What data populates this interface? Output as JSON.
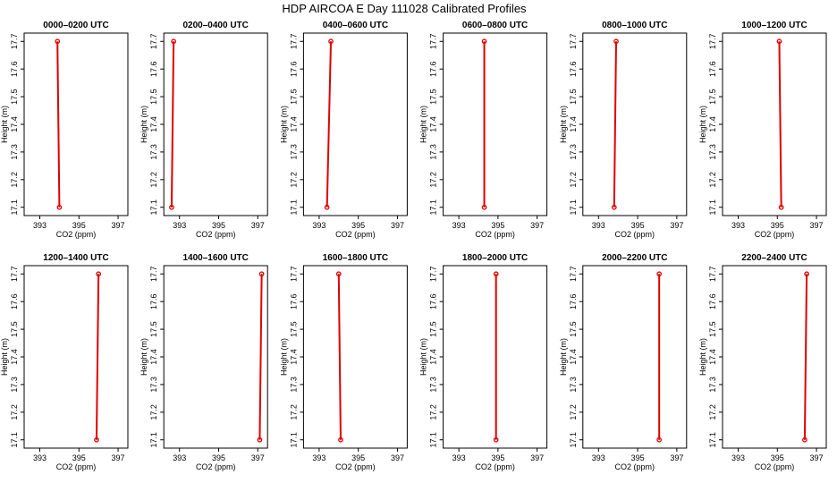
{
  "figure": {
    "title": "HDP AIRCOA E  Day 111028  Calibrated Profiles"
  },
  "chart_data": {
    "type": "line",
    "layout": "2x6 small multiples",
    "xlabel": "CO2 (ppm)",
    "ylabel": "Height (m)",
    "xlim": [
      392.2,
      397.5
    ],
    "ylim": [
      17.07,
      17.73
    ],
    "xticks": [
      393,
      395,
      397
    ],
    "yticks": [
      17.1,
      17.2,
      17.3,
      17.4,
      17.5,
      17.6,
      17.7
    ],
    "grid": false,
    "line_color": "#e00000",
    "panels": [
      {
        "title": "0000–0200 UTC",
        "x": [
          394.0,
          393.9
        ],
        "y": [
          17.1,
          17.7
        ]
      },
      {
        "title": "0200–0400 UTC",
        "x": [
          392.6,
          392.7
        ],
        "y": [
          17.1,
          17.7
        ]
      },
      {
        "title": "0400–0600 UTC",
        "x": [
          393.4,
          393.6
        ],
        "y": [
          17.1,
          17.7
        ]
      },
      {
        "title": "0600–0800 UTC",
        "x": [
          394.3,
          394.3
        ],
        "y": [
          17.1,
          17.7
        ]
      },
      {
        "title": "0800–1000 UTC",
        "x": [
          393.8,
          393.9
        ],
        "y": [
          17.1,
          17.7
        ]
      },
      {
        "title": "1000–1200 UTC",
        "x": [
          395.2,
          395.1
        ],
        "y": [
          17.1,
          17.7
        ]
      },
      {
        "title": "1200–1400 UTC",
        "x": [
          395.9,
          396.0
        ],
        "y": [
          17.1,
          17.7
        ]
      },
      {
        "title": "1400–1600 UTC",
        "x": [
          397.1,
          397.2
        ],
        "y": [
          17.1,
          17.7
        ]
      },
      {
        "title": "1600–1800 UTC",
        "x": [
          394.1,
          394.0
        ],
        "y": [
          17.1,
          17.7
        ]
      },
      {
        "title": "1800–2000 UTC",
        "x": [
          394.9,
          394.9
        ],
        "y": [
          17.1,
          17.7
        ]
      },
      {
        "title": "2000–2200 UTC",
        "x": [
          396.1,
          396.1
        ],
        "y": [
          17.1,
          17.7
        ]
      },
      {
        "title": "2200–2400 UTC",
        "x": [
          396.4,
          396.5
        ],
        "y": [
          17.1,
          17.7
        ]
      }
    ]
  }
}
